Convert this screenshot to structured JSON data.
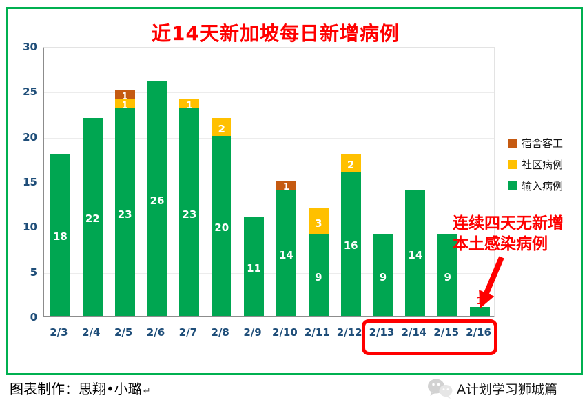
{
  "chart_data": {
    "type": "bar",
    "stacked": true,
    "title": "近14天新加坡每日新增病例",
    "categories": [
      "2/3",
      "2/4",
      "2/5",
      "2/6",
      "2/7",
      "2/8",
      "2/9",
      "2/10",
      "2/11",
      "2/12",
      "2/13",
      "2/14",
      "2/15",
      "2/16"
    ],
    "series": [
      {
        "name": "输入病例",
        "color": "#00A651",
        "values": [
          18,
          22,
          23,
          26,
          23,
          20,
          11,
          14,
          9,
          16,
          9,
          14,
          9,
          1
        ]
      },
      {
        "name": "社区病例",
        "color": "#FFC000",
        "values": [
          0,
          0,
          1,
          0,
          1,
          2,
          0,
          0,
          3,
          2,
          0,
          0,
          0,
          0
        ]
      },
      {
        "name": "宿舍客工",
        "color": "#C55A11",
        "values": [
          0,
          0,
          1,
          0,
          0,
          0,
          0,
          1,
          0,
          0,
          0,
          0,
          0,
          0
        ]
      }
    ],
    "ylim": [
      0,
      30
    ],
    "yticks": [
      0,
      5,
      10,
      15,
      20,
      25,
      30
    ],
    "grid": true,
    "legend_position": "right",
    "legend_order": [
      "宿舍客工",
      "社区病例",
      "输入病例"
    ],
    "highlight_categories": [
      "2/13",
      "2/14",
      "2/15",
      "2/16"
    ]
  },
  "annotation": {
    "line1": "连续四天无新增",
    "line2": "本土感染病例",
    "color": "#FF0000"
  },
  "footer": {
    "credit": "图表制作：思翔•小璐",
    "return_mark": "↵",
    "brand": "A计划学习狮城篇"
  },
  "colors": {
    "title": "#FF0000",
    "frame": "#00B050",
    "axis_label": "#1F4E79",
    "annotation": "#FF0000",
    "highlight_box": "#FF0000",
    "bar_label": "#FFFFFF",
    "outside_label": "#FF0000"
  }
}
